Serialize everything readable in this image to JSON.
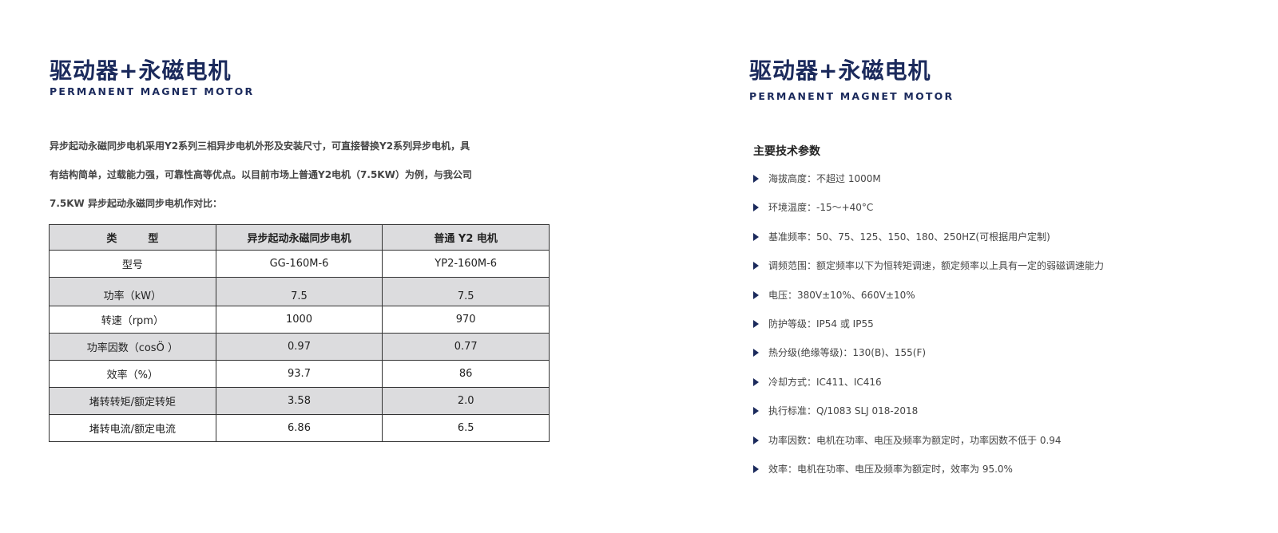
{
  "left": {
    "title": "驱动器+永磁电机",
    "subtitle": "PERMANENT MAGNET MOTOR",
    "intro_lines": [
      "异步起动永磁同步电机采用Y2系列三相异步电机外形及安装尺寸，可直接替换Y2系列异步电机，具",
      "有结构简单，过载能力强，可靠性高等优点。以目前市场上普通Y2电机（7.5KW）为例，与我公司",
      "7.5KW 异步起动永磁同步电机作对比："
    ],
    "table": {
      "headers": [
        "类　　　型",
        "异步起动永磁同步电机",
        "普通 Y2 电机"
      ],
      "rows": [
        [
          "型号",
          "GG-160M-6",
          "YP2-160M-6"
        ],
        [
          "功率（kW）",
          "7.5",
          "7.5"
        ],
        [
          "转速（rpm）",
          "1000",
          "970"
        ],
        [
          "功率因数（cosÖ ）",
          "0.97",
          "0.77"
        ],
        [
          "效率（%）",
          "93.7",
          "86"
        ],
        [
          "堵转转矩/额定转矩",
          "3.58",
          "2.0"
        ],
        [
          "堵转电流/额定电流",
          "6.86",
          "6.5"
        ]
      ]
    }
  },
  "right": {
    "title": "驱动器+永磁电机",
    "subtitle": "PERMANENT MAGNET MOTOR",
    "params_heading": "主要技术参数",
    "params": [
      "海拔高度：不超过 1000M",
      "环境温度：-15～+40°C",
      "基准频率：50、75、125、150、180、250HZ(可根据用户定制)",
      "调频范围：额定频率以下为恒转矩调速，额定频率以上具有一定的弱磁调速能力",
      "电压：380V±10%、660V±10%",
      "防护等级：IP54 或 IP55",
      "热分级(绝缘等级)：130(B)、155(F)",
      "冷却方式：IC411、IC416",
      "执行标准：Q/1083 SLJ 018-2018",
      "功率因数：电机在功率、电压及频率为额定时，功率因数不低于 0.94",
      "效率：电机在功率、电压及频率为额定时，效率为 95.0%"
    ]
  },
  "colors": {
    "brand": "#1b2a5c",
    "row_gray": "#dcdcde"
  }
}
